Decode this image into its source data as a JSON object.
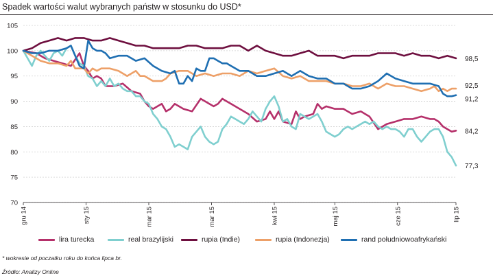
{
  "title": "Spadek wartości walut wybranych państw w stosunku do USD*",
  "footnote": "* wokresie od poczatku roku do końca lipca br.",
  "source": "Źródło: Analizy Online",
  "chart_data": {
    "type": "line",
    "ylim": [
      70,
      105
    ],
    "yticks": [
      70,
      75,
      80,
      85,
      90,
      95,
      100,
      105
    ],
    "grid": true,
    "x_range": [
      0,
      100
    ],
    "xticks": [
      {
        "label": "gru 14",
        "pos": 0
      },
      {
        "label": "sty 15",
        "pos": 14.5
      },
      {
        "label": "mar 15",
        "pos": 29
      },
      {
        "label": "mar 15",
        "pos": 43.5
      },
      {
        "label": "kwi 15",
        "pos": 58
      },
      {
        "label": "maj 15",
        "pos": 72
      },
      {
        "label": "cze 15",
        "pos": 86.5
      },
      {
        "label": "lip 15",
        "pos": 100
      }
    ],
    "legend_position": "bottom",
    "series": [
      {
        "name": "lira turecka",
        "color": "#b5306a",
        "end_label": "84,2",
        "x": [
          0,
          3,
          5,
          7,
          9,
          11,
          13,
          14,
          15,
          16,
          17,
          18,
          19,
          21,
          23,
          25,
          27,
          28,
          29,
          30,
          31,
          32,
          33,
          34,
          35,
          37,
          39,
          41,
          43,
          44,
          45,
          46,
          47,
          48,
          50,
          52,
          54,
          56,
          57,
          58,
          59,
          60,
          62,
          63,
          64,
          65,
          67,
          68,
          69,
          70,
          72,
          74,
          76,
          78,
          80,
          82,
          84,
          86,
          88,
          90,
          92,
          94,
          95,
          96,
          97,
          98,
          99,
          100
        ],
        "values": [
          100,
          99.5,
          98.5,
          98,
          97.5,
          97,
          99.5,
          97,
          96,
          94.5,
          95,
          94.5,
          93,
          93,
          93.5,
          92,
          91.5,
          90,
          89,
          88.5,
          89,
          89.5,
          88,
          88.5,
          89.5,
          88.5,
          88,
          90.5,
          89.5,
          89,
          89.5,
          90.5,
          90,
          89.5,
          88.5,
          87.5,
          86,
          86.5,
          88,
          86.5,
          88,
          86,
          85.5,
          88,
          86.5,
          87,
          87.5,
          89.5,
          88.5,
          89,
          88.5,
          88.5,
          87.5,
          88,
          87,
          84.5,
          85.5,
          86,
          86.5,
          86.5,
          87,
          86.5,
          86.5,
          86,
          85,
          84.5,
          84,
          84.2
        ]
      },
      {
        "name": "real brazylijski",
        "color": "#7fcfcf",
        "end_label": "77,3",
        "x": [
          0,
          1,
          2,
          3,
          4,
          5,
          6,
          7,
          8,
          9,
          10,
          11,
          12,
          13,
          14,
          15,
          16,
          17,
          18,
          19,
          20,
          21,
          22,
          23,
          24,
          25,
          26,
          27,
          28,
          29,
          30,
          31,
          32,
          33,
          34,
          35,
          36,
          37,
          38,
          39,
          40,
          41,
          42,
          43,
          44,
          45,
          46,
          47,
          48,
          49,
          50,
          51,
          52,
          53,
          54,
          55,
          56,
          57,
          58,
          59,
          60,
          61,
          62,
          63,
          64,
          65,
          66,
          67,
          68,
          69,
          70,
          71,
          72,
          73,
          74,
          75,
          76,
          77,
          78,
          79,
          80,
          81,
          82,
          83,
          84,
          85,
          86,
          87,
          88,
          89,
          90,
          91,
          92,
          93,
          94,
          95,
          96,
          97,
          98,
          99,
          100
        ],
        "values": [
          100,
          98.5,
          97,
          99,
          100,
          99,
          98,
          99.5,
          100,
          99,
          100.5,
          101,
          99,
          97.5,
          97,
          95,
          94.5,
          93,
          94,
          93,
          94.5,
          93,
          93.5,
          92.5,
          92,
          92,
          91,
          91,
          90,
          89.5,
          87.5,
          86.5,
          85,
          84.5,
          83,
          81,
          81.5,
          81,
          80.5,
          83,
          84,
          85,
          83,
          82,
          81.5,
          82,
          84.5,
          85.5,
          87,
          86.5,
          86,
          85.5,
          86.5,
          88,
          87,
          86,
          88.5,
          90,
          91,
          89,
          86,
          86.5,
          85,
          84.5,
          87.5,
          87,
          86.5,
          87,
          87.5,
          86,
          84,
          83.5,
          83,
          83.5,
          84.5,
          85,
          84.5,
          85,
          85.5,
          86,
          85.5,
          86,
          85,
          84.5,
          85,
          84.5,
          84.5,
          84,
          83,
          84.5,
          84.5,
          83,
          82,
          83,
          84,
          84.5,
          84.5,
          83,
          80,
          79,
          77.3
        ]
      },
      {
        "name": "rupia (Indie)",
        "color": "#6e0f3f",
        "end_label": "98,5",
        "x": [
          0,
          2,
          4,
          6,
          8,
          10,
          12,
          14,
          16,
          18,
          20,
          22,
          24,
          26,
          28,
          30,
          32,
          34,
          36,
          38,
          40,
          42,
          44,
          46,
          48,
          50,
          52,
          54,
          56,
          58,
          60,
          62,
          64,
          66,
          68,
          70,
          72,
          74,
          76,
          78,
          80,
          82,
          84,
          86,
          88,
          90,
          92,
          94,
          96,
          98,
          100
        ],
        "values": [
          100,
          100.5,
          101.5,
          102,
          102.5,
          102,
          102.5,
          102.5,
          102,
          102,
          102.5,
          102,
          101.5,
          101,
          101,
          100.5,
          100.5,
          100.5,
          100.5,
          101,
          101,
          100.5,
          100.5,
          100.5,
          101,
          101,
          100,
          101,
          100,
          99.5,
          99,
          99,
          99.5,
          100,
          99,
          99,
          99,
          98.5,
          99,
          99,
          99,
          99.5,
          99.5,
          99.5,
          99,
          99.5,
          99,
          99,
          98.5,
          99,
          98.5
        ]
      },
      {
        "name": "rupia (Indonezja)",
        "color": "#eda068",
        "end_label": "92,5",
        "x": [
          0,
          2,
          3,
          4,
          6,
          8,
          10,
          11,
          12,
          14,
          15,
          16,
          17,
          18,
          20,
          22,
          24,
          26,
          27,
          28,
          30,
          32,
          33,
          34,
          36,
          38,
          40,
          42,
          44,
          46,
          48,
          50,
          52,
          54,
          56,
          58,
          60,
          62,
          64,
          66,
          68,
          70,
          72,
          74,
          76,
          78,
          80,
          82,
          84,
          86,
          88,
          90,
          92,
          94,
          95,
          96,
          97,
          98,
          99,
          100
        ],
        "values": [
          100,
          99,
          98.5,
          98,
          97.5,
          97.5,
          97,
          98,
          96.5,
          96.5,
          95.5,
          96.5,
          96,
          96.5,
          96.5,
          96,
          95,
          96,
          95,
          95,
          94,
          94,
          94.5,
          95.5,
          96,
          96,
          95,
          95.5,
          95,
          95.5,
          95.5,
          95,
          96,
          95.5,
          96,
          96.5,
          95,
          94.5,
          95,
          94,
          94,
          94,
          93.5,
          93.5,
          93,
          93,
          93.5,
          92.5,
          93.5,
          93,
          93,
          92.5,
          92,
          92.5,
          93,
          92,
          92.5,
          92,
          92.5,
          92.5
        ]
      },
      {
        "name": "rand południowoafrykański",
        "color": "#1f6fb2",
        "end_label": "91,2",
        "x": [
          0,
          2,
          4,
          6,
          8,
          10,
          11,
          12,
          13,
          14,
          15,
          16,
          17,
          18,
          19,
          20,
          22,
          24,
          26,
          28,
          30,
          32,
          34,
          35,
          36,
          37,
          38,
          39,
          40,
          41,
          42,
          43,
          44,
          45,
          46,
          47,
          48,
          50,
          52,
          54,
          56,
          58,
          60,
          62,
          64,
          66,
          68,
          70,
          72,
          74,
          76,
          78,
          80,
          82,
          84,
          86,
          88,
          90,
          92,
          94,
          96,
          97,
          98,
          99,
          100
        ],
        "values": [
          100,
          99.5,
          99.5,
          100,
          100,
          100.5,
          101,
          99,
          97,
          96.5,
          102,
          100.5,
          100,
          100,
          99.5,
          98.5,
          99,
          99,
          98,
          98.5,
          97,
          96,
          95.5,
          96,
          93.5,
          93.5,
          95,
          94,
          96.5,
          96,
          96,
          98.5,
          98.5,
          98,
          97.5,
          97.5,
          97,
          96,
          96,
          95,
          95,
          95.5,
          96,
          95,
          96,
          95,
          94.5,
          94.5,
          93.5,
          93.5,
          92.5,
          92.5,
          93,
          94,
          95.5,
          94.5,
          94,
          93.5,
          93.5,
          93.5,
          93,
          91.5,
          91,
          91,
          91.2
        ]
      }
    ]
  }
}
